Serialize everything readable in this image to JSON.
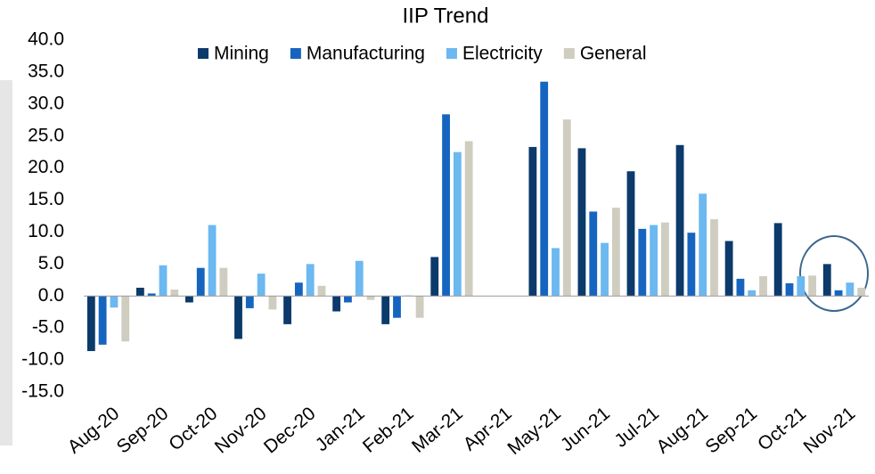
{
  "chart_data": {
    "type": "bar",
    "title": "IIP Trend",
    "categories": [
      "Aug-20",
      "Sep-20",
      "Oct-20",
      "Nov-20",
      "Dec-20",
      "Jan-21",
      "Feb-21",
      "Mar-21",
      "Apr-21",
      "May-21",
      "Jun-21",
      "Jul-21",
      "Aug-21",
      "Sep-21",
      "Oct-21",
      "Nov-21"
    ],
    "series": [
      {
        "name": "Mining",
        "color": "#0b3a6b",
        "values": [
          -8.6,
          1.3,
          -1.0,
          -6.7,
          -4.4,
          -2.4,
          -4.4,
          6.1,
          null,
          23.3,
          23.1,
          19.5,
          23.6,
          8.6,
          11.4,
          5.0
        ]
      },
      {
        "name": "Manufacturing",
        "color": "#1565c0",
        "values": [
          -7.6,
          0.4,
          4.4,
          -1.9,
          2.1,
          -1.0,
          -3.4,
          28.4,
          null,
          33.5,
          13.2,
          10.5,
          9.9,
          2.7,
          2.0,
          0.9
        ]
      },
      {
        "name": "Electricity",
        "color": "#6cb8f0",
        "values": [
          -1.8,
          4.8,
          11.1,
          3.5,
          5.0,
          5.5,
          0.1,
          22.5,
          null,
          7.5,
          8.3,
          11.1,
          16.0,
          0.9,
          3.1,
          2.1
        ]
      },
      {
        "name": "General",
        "color": "#cfcdbf",
        "values": [
          -7.1,
          1.0,
          4.4,
          -2.1,
          1.6,
          -0.6,
          -3.4,
          24.2,
          null,
          27.6,
          13.8,
          11.5,
          12.0,
          3.1,
          3.2,
          1.3
        ]
      }
    ],
    "ylim": [
      -15,
      40
    ],
    "yticks": [
      {
        "value": -15,
        "label": "-15.0"
      },
      {
        "value": -10,
        "label": "-10.0"
      },
      {
        "value": -5,
        "label": "-5.0"
      },
      {
        "value": 0,
        "label": "0.0"
      },
      {
        "value": 5,
        "label": "5.0"
      },
      {
        "value": 10,
        "label": "10.0"
      },
      {
        "value": 15,
        "label": "15.0"
      },
      {
        "value": 20,
        "label": "20.0"
      },
      {
        "value": 25,
        "label": "25.0"
      },
      {
        "value": 30,
        "label": "30.0"
      },
      {
        "value": 35,
        "label": "35.0"
      },
      {
        "value": 40,
        "label": "40.0"
      }
    ],
    "legend": "top",
    "grid": false
  }
}
